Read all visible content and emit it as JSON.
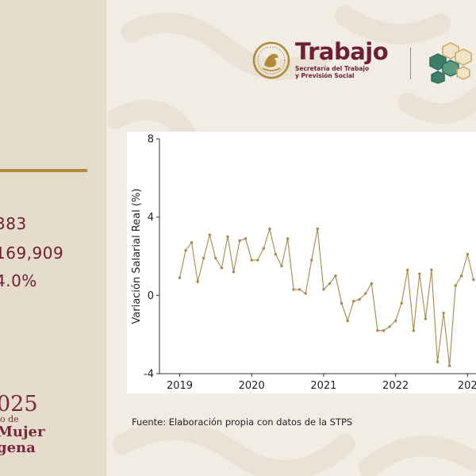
{
  "left_panel": {
    "stats": [
      "383",
      "169,909",
      "4.0%"
    ],
    "year_badge": {
      "year": "025",
      "subtitle": "o de",
      "line1": "Mujer",
      "line2": "gena"
    }
  },
  "header": {
    "brand_name": "Trabajo",
    "brand_subtitle_1": "Secretaría del Trabajo",
    "brand_subtitle_2": "y Previsión Social"
  },
  "chart_data": {
    "type": "line",
    "ylabel": "Variación Salarial Real (%)",
    "xlabel": "",
    "ylim": [
      -4,
      8
    ],
    "yticks": [
      -4,
      0,
      4,
      8
    ],
    "xticks": [
      "2019",
      "2020",
      "2021",
      "2022",
      "202"
    ],
    "grid": false,
    "x_start": "2019-01",
    "x_step": "monthly",
    "series": [
      {
        "color": "#a78a4a",
        "values": [
          0.9,
          2.3,
          2.7,
          0.7,
          1.9,
          3.1,
          1.9,
          1.4,
          3.0,
          1.2,
          2.8,
          2.9,
          1.8,
          1.8,
          2.4,
          3.4,
          2.1,
          1.5,
          2.9,
          0.3,
          0.3,
          0.1,
          1.8,
          3.4,
          0.3,
          0.6,
          1.0,
          -0.4,
          -1.3,
          -0.3,
          -0.2,
          0.1,
          0.6,
          -1.8,
          -1.8,
          -1.6,
          -1.3,
          -0.4,
          1.3,
          -1.8,
          1.1,
          -1.2,
          1.3,
          -3.4,
          -0.9,
          -3.6,
          0.5,
          1.0,
          2.1,
          0.8
        ]
      }
    ]
  },
  "source": "Fuente: Elaboración propia con datos de la STPS",
  "colors": {
    "guinda": "#6e1e35",
    "gold": "#b38a3c",
    "line": "#a78a4a",
    "panel": "#e5dccb",
    "background": "#f2ede4"
  }
}
